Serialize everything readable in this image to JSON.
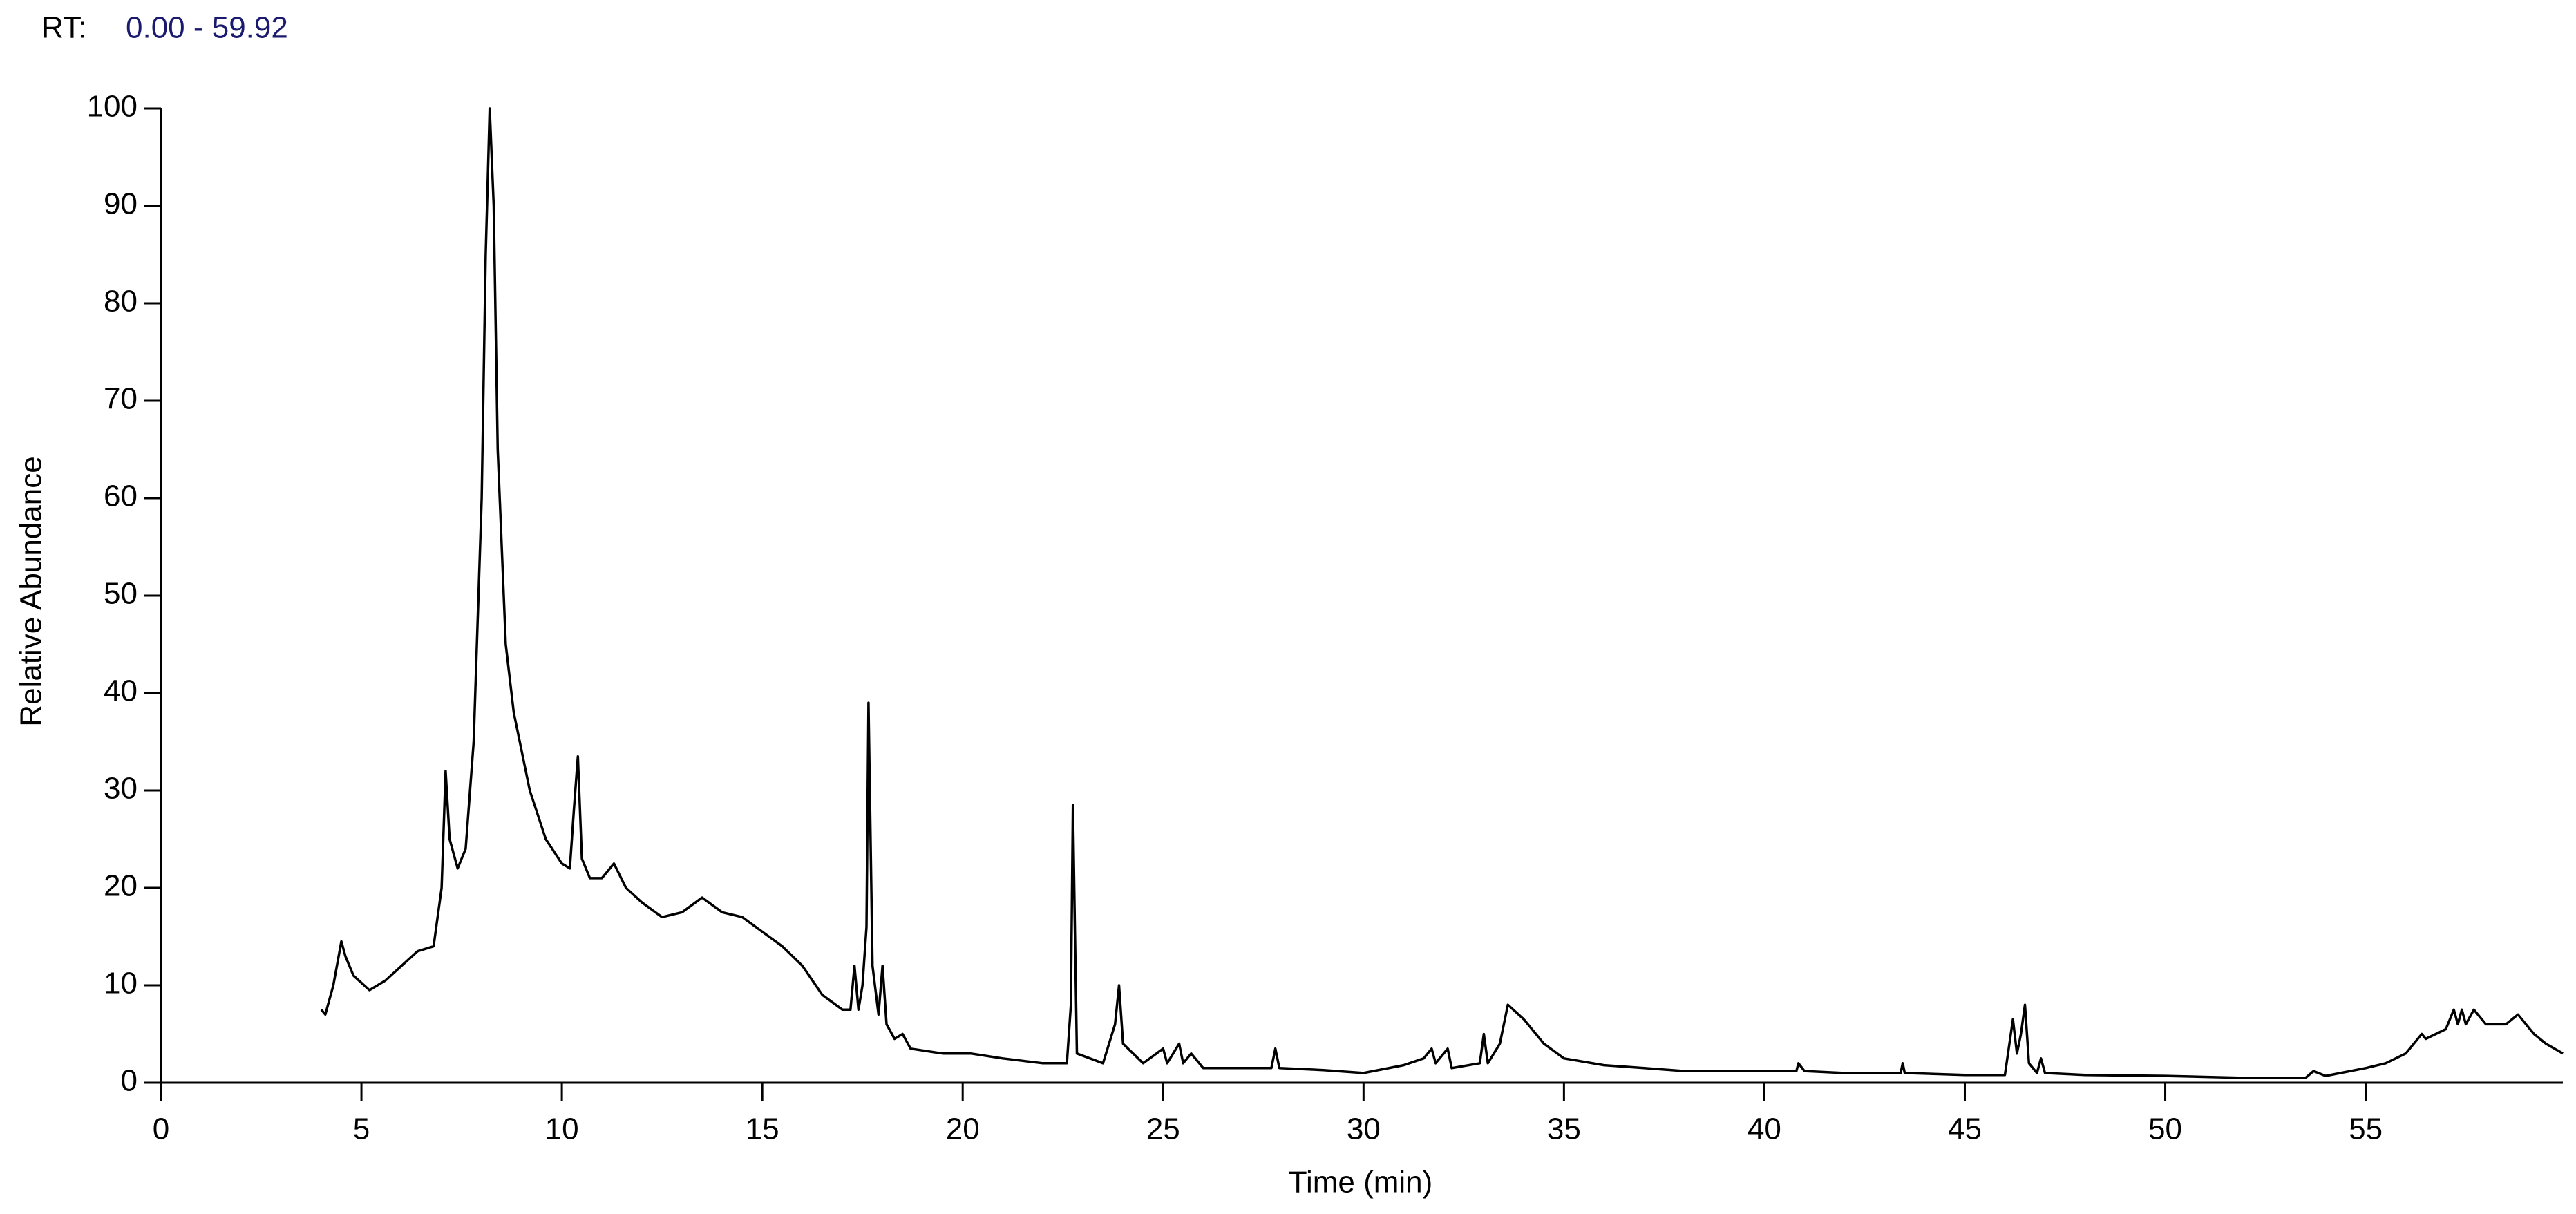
{
  "chart_data": {
    "type": "line",
    "title": "RT:",
    "subtitle": "0.00 - 59.92",
    "x_label": "Time (min)",
    "y_label": "Relative Abundance",
    "color": "#000000",
    "xlim": [
      0,
      59.92
    ],
    "xticks": [
      0,
      5,
      10,
      15,
      20,
      25,
      30,
      35,
      40,
      45,
      50,
      55
    ],
    "ylim": [
      0,
      100
    ],
    "yticks": [
      0,
      10,
      20,
      30,
      40,
      50,
      60,
      70,
      80,
      90,
      100
    ],
    "x": [
      4.0,
      4.1,
      4.3,
      4.5,
      4.6,
      4.8,
      5.2,
      5.6,
      6.0,
      6.4,
      6.8,
      7.0,
      7.1,
      7.2,
      7.4,
      7.6,
      7.8,
      8.0,
      8.1,
      8.2,
      8.3,
      8.4,
      8.6,
      8.8,
      9.2,
      9.6,
      10.0,
      10.2,
      10.3,
      10.4,
      10.5,
      10.7,
      11.0,
      11.3,
      11.6,
      12.0,
      12.5,
      13.0,
      13.5,
      14.0,
      14.5,
      15.0,
      15.5,
      16.0,
      16.5,
      17.0,
      17.2,
      17.3,
      17.4,
      17.5,
      17.6,
      17.65,
      17.75,
      17.9,
      18.0,
      18.1,
      18.3,
      18.5,
      18.7,
      19.5,
      20.2,
      21.0,
      22.0,
      22.6,
      22.7,
      22.75,
      22.85,
      23.5,
      23.8,
      23.9,
      24.0,
      24.5,
      25.0,
      25.1,
      25.4,
      25.5,
      25.7,
      26.0,
      27.0,
      27.7,
      27.8,
      27.9,
      29.0,
      30.0,
      31.0,
      31.5,
      31.7,
      31.8,
      32.1,
      32.2,
      32.9,
      33.0,
      33.1,
      33.4,
      33.6,
      34.0,
      34.5,
      35.0,
      36.0,
      37.0,
      38.0,
      40.0,
      40.8,
      40.85,
      41.0,
      42.0,
      43.4,
      43.45,
      43.5,
      45.0,
      46.0,
      46.2,
      46.3,
      46.4,
      46.5,
      46.6,
      46.8,
      46.9,
      47.0,
      48.0,
      50.0,
      52.0,
      53.5,
      53.7,
      54.0,
      55.0,
      55.5,
      56.0,
      56.4,
      56.5,
      57.0,
      57.2,
      57.3,
      57.4,
      57.5,
      57.7,
      58.0,
      58.5,
      58.8,
      59.2,
      59.5,
      59.92
    ],
    "values": [
      7.5,
      7,
      10,
      14.5,
      13,
      11,
      9.5,
      10.5,
      12,
      13.5,
      14,
      20,
      32,
      25,
      22,
      24,
      35,
      60,
      85,
      100,
      90,
      65,
      45,
      38,
      30,
      25,
      22.5,
      22,
      28,
      33.5,
      23,
      21,
      21,
      22.5,
      20,
      18.5,
      17,
      17.5,
      19,
      17.5,
      17,
      15.5,
      14,
      12,
      9,
      7.5,
      7.5,
      12,
      7.5,
      10,
      16,
      39,
      12,
      7,
      12,
      6,
      4.5,
      5,
      3.5,
      3,
      3,
      2.5,
      2,
      2,
      8,
      28.5,
      3,
      2,
      6,
      10,
      4,
      2,
      3.5,
      2,
      4,
      2,
      3,
      1.5,
      1.5,
      1.5,
      3.5,
      1.5,
      1.3,
      1,
      1.8,
      2.5,
      3.5,
      2,
      3.5,
      1.5,
      2,
      5,
      2,
      4,
      8,
      6.5,
      4,
      2.5,
      1.8,
      1.5,
      1.2,
      1.2,
      1.2,
      2,
      1.2,
      1,
      1,
      2,
      1,
      0.8,
      0.8,
      6.5,
      3,
      5,
      8,
      2,
      1,
      2.5,
      1,
      0.8,
      0.7,
      0.5,
      0.5,
      1.2,
      0.7,
      1.5,
      2,
      3,
      5,
      4.5,
      5.5,
      7.5,
      6,
      7.5,
      6,
      7.5,
      6,
      6,
      7,
      5,
      4,
      3
    ]
  }
}
